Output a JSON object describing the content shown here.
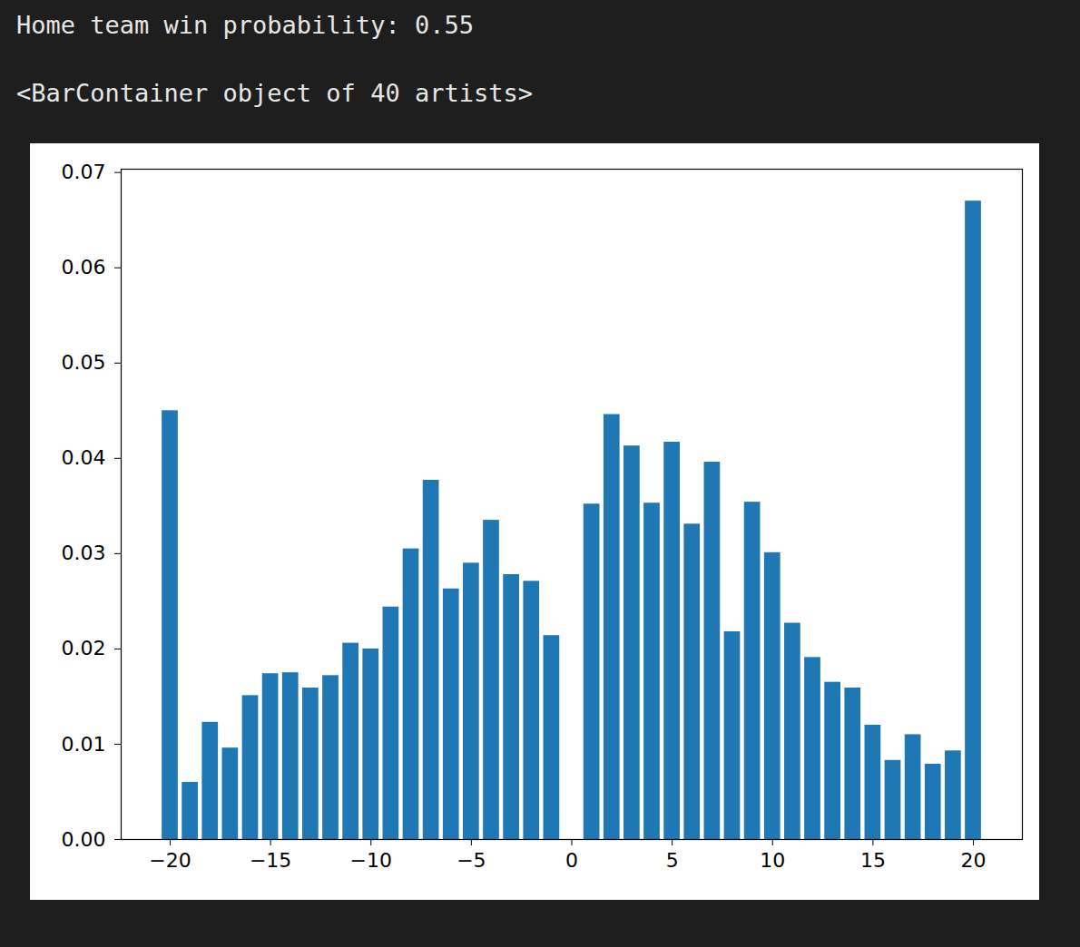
{
  "chart_data": {
    "type": "bar",
    "annotations": [
      "Home team win probability: 0.55",
      "<BarContainer object of 40 artists>"
    ],
    "x": [
      -20,
      -19,
      -18,
      -17,
      -16,
      -15,
      -14,
      -13,
      -12,
      -11,
      -10,
      -9,
      -8,
      -7,
      -6,
      -5,
      -4,
      -3,
      -2,
      -1,
      1,
      2,
      3,
      4,
      5,
      6,
      7,
      8,
      9,
      10,
      11,
      12,
      13,
      14,
      15,
      16,
      17,
      18,
      19,
      20
    ],
    "values": [
      0.045,
      0.006,
      0.0123,
      0.0096,
      0.0151,
      0.0174,
      0.0175,
      0.0159,
      0.0172,
      0.0206,
      0.02,
      0.0244,
      0.0305,
      0.0377,
      0.0263,
      0.029,
      0.0335,
      0.0278,
      0.0271,
      0.0214,
      0.0352,
      0.0446,
      0.0413,
      0.0353,
      0.0417,
      0.0331,
      0.0396,
      0.0218,
      0.0354,
      0.0301,
      0.0227,
      0.0191,
      0.0165,
      0.0159,
      0.012,
      0.0083,
      0.011,
      0.0079,
      0.0093,
      0.067
    ],
    "color": "#1f77b4",
    "xlim": [
      -22.44,
      22.44
    ],
    "ylim": [
      0,
      0.07035
    ],
    "xticks": [
      {
        "value": -20,
        "label": "−20"
      },
      {
        "value": -15,
        "label": "−15"
      },
      {
        "value": -10,
        "label": "−10"
      },
      {
        "value": -5,
        "label": "−5"
      },
      0,
      5,
      10,
      15,
      20
    ],
    "yticks": [
      {
        "value": 0,
        "label": "0.00"
      },
      {
        "value": 0.01,
        "label": "0.01"
      },
      {
        "value": 0.02,
        "label": "0.02"
      },
      {
        "value": 0.03,
        "label": "0.03"
      },
      {
        "value": 0.04,
        "label": "0.04"
      },
      {
        "value": 0.05,
        "label": "0.05"
      },
      {
        "value": 0.06,
        "label": "0.06"
      },
      {
        "value": 0.07,
        "label": "0.07"
      }
    ],
    "grid": false
  }
}
